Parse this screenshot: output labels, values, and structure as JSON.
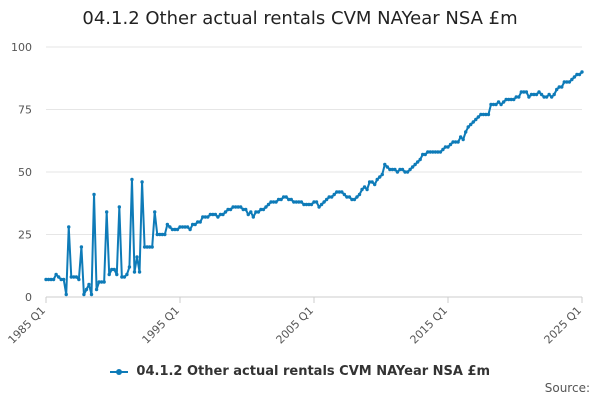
{
  "chart_data": {
    "type": "line",
    "title": "04.1.2 Other actual rentals CVM NAYear NSA £m",
    "xlabel": "",
    "ylabel": "",
    "ylim": [
      0,
      100
    ],
    "yticks": [
      0,
      25,
      50,
      75,
      100
    ],
    "xticks": [
      "1985 Q1",
      "1995 Q1",
      "2005 Q1",
      "2015 Q1",
      "2025 Q1"
    ],
    "grid": true,
    "legend_position": "bottom",
    "colors": {
      "series": "#0e7bb8",
      "grid": "#e6e6e6",
      "axis": "#cccccc"
    },
    "series": [
      {
        "name": "04.1.2 Other actual rentals CVM NAYear NSA £m",
        "quarters_from": "1985 Q1",
        "values": [
          7,
          7,
          7,
          7,
          9,
          8,
          7,
          7,
          1,
          28,
          8,
          8,
          8,
          7,
          20,
          1,
          3,
          5,
          1,
          41,
          3,
          6,
          6,
          6,
          34,
          9,
          11,
          11,
          9,
          36,
          8,
          8,
          9,
          12,
          47,
          10,
          16,
          10,
          46,
          20,
          20,
          20,
          20,
          34,
          25,
          25,
          25,
          25,
          29,
          28,
          27,
          27,
          27,
          28,
          28,
          28,
          28,
          27,
          29,
          29,
          30,
          30,
          32,
          32,
          32,
          33,
          33,
          33,
          32,
          33,
          33,
          34,
          35,
          35,
          36,
          36,
          36,
          36,
          35,
          35,
          33,
          34,
          32,
          34,
          34,
          35,
          35,
          36,
          37,
          38,
          38,
          38,
          39,
          39,
          40,
          40,
          39,
          39,
          38,
          38,
          38,
          38,
          37,
          37,
          37,
          37,
          38,
          38,
          36,
          37,
          38,
          39,
          40,
          40,
          41,
          42,
          42,
          42,
          41,
          40,
          40,
          39,
          39,
          40,
          41,
          43,
          44,
          43,
          46,
          46,
          45,
          47,
          48,
          49,
          53,
          52,
          51,
          51,
          51,
          50,
          51,
          51,
          50,
          50,
          51,
          52,
          53,
          54,
          55,
          57,
          57,
          58,
          58,
          58,
          58,
          58,
          58,
          59,
          60,
          60,
          61,
          62,
          62,
          62,
          64,
          63,
          66,
          68,
          69,
          70,
          71,
          72,
          73,
          73,
          73,
          73,
          77,
          77,
          77,
          78,
          77,
          78,
          79,
          79,
          79,
          79,
          80,
          80,
          82,
          82,
          82,
          80,
          81,
          81,
          81,
          82,
          81,
          80,
          80,
          81,
          80,
          81,
          83,
          84,
          84,
          86,
          86,
          86,
          87,
          88,
          89,
          89,
          90
        ]
      }
    ],
    "source_label": "Source:"
  }
}
